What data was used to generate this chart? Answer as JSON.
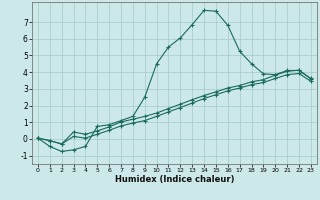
{
  "xlabel": "Humidex (Indice chaleur)",
  "background_color": "#cce8e8",
  "grid_color": "#aacece",
  "line_color": "#1a6b5a",
  "xlim": [
    -0.5,
    23.5
  ],
  "ylim": [
    -1.5,
    8.2
  ],
  "yticks": [
    -1,
    0,
    1,
    2,
    3,
    4,
    5,
    6,
    7
  ],
  "xticks": [
    0,
    1,
    2,
    3,
    4,
    5,
    6,
    7,
    8,
    9,
    10,
    11,
    12,
    13,
    14,
    15,
    16,
    17,
    18,
    19,
    20,
    21,
    22,
    23
  ],
  "line1_x": [
    0,
    1,
    2,
    3,
    4,
    5,
    6,
    7,
    8,
    9,
    10,
    11,
    12,
    13,
    14,
    15,
    16,
    17,
    18,
    19,
    20,
    21,
    22,
    23
  ],
  "line1_y": [
    0.05,
    -0.45,
    -0.75,
    -0.65,
    -0.45,
    0.75,
    0.85,
    1.1,
    1.35,
    2.5,
    4.5,
    5.5,
    6.05,
    6.85,
    7.7,
    7.65,
    6.8,
    5.25,
    4.5,
    3.9,
    3.85,
    4.1,
    4.1,
    3.6
  ],
  "line2_x": [
    0,
    1,
    2,
    3,
    4,
    5,
    6,
    7,
    8,
    9,
    10,
    11,
    12,
    13,
    14,
    15,
    16,
    17,
    18,
    19,
    20,
    21,
    22,
    23
  ],
  "line2_y": [
    0.05,
    -0.1,
    -0.3,
    0.42,
    0.28,
    0.48,
    0.72,
    1.02,
    1.18,
    1.35,
    1.55,
    1.82,
    2.08,
    2.35,
    2.6,
    2.82,
    3.05,
    3.2,
    3.42,
    3.55,
    3.82,
    4.05,
    4.12,
    3.62
  ],
  "line3_x": [
    0,
    1,
    2,
    3,
    4,
    5,
    6,
    7,
    8,
    9,
    10,
    11,
    12,
    13,
    14,
    15,
    16,
    17,
    18,
    19,
    20,
    21,
    22,
    23
  ],
  "line3_y": [
    0.05,
    -0.1,
    -0.3,
    0.15,
    0.05,
    0.28,
    0.52,
    0.78,
    0.95,
    1.1,
    1.35,
    1.62,
    1.88,
    2.15,
    2.42,
    2.65,
    2.88,
    3.05,
    3.25,
    3.38,
    3.62,
    3.85,
    3.92,
    3.45
  ]
}
